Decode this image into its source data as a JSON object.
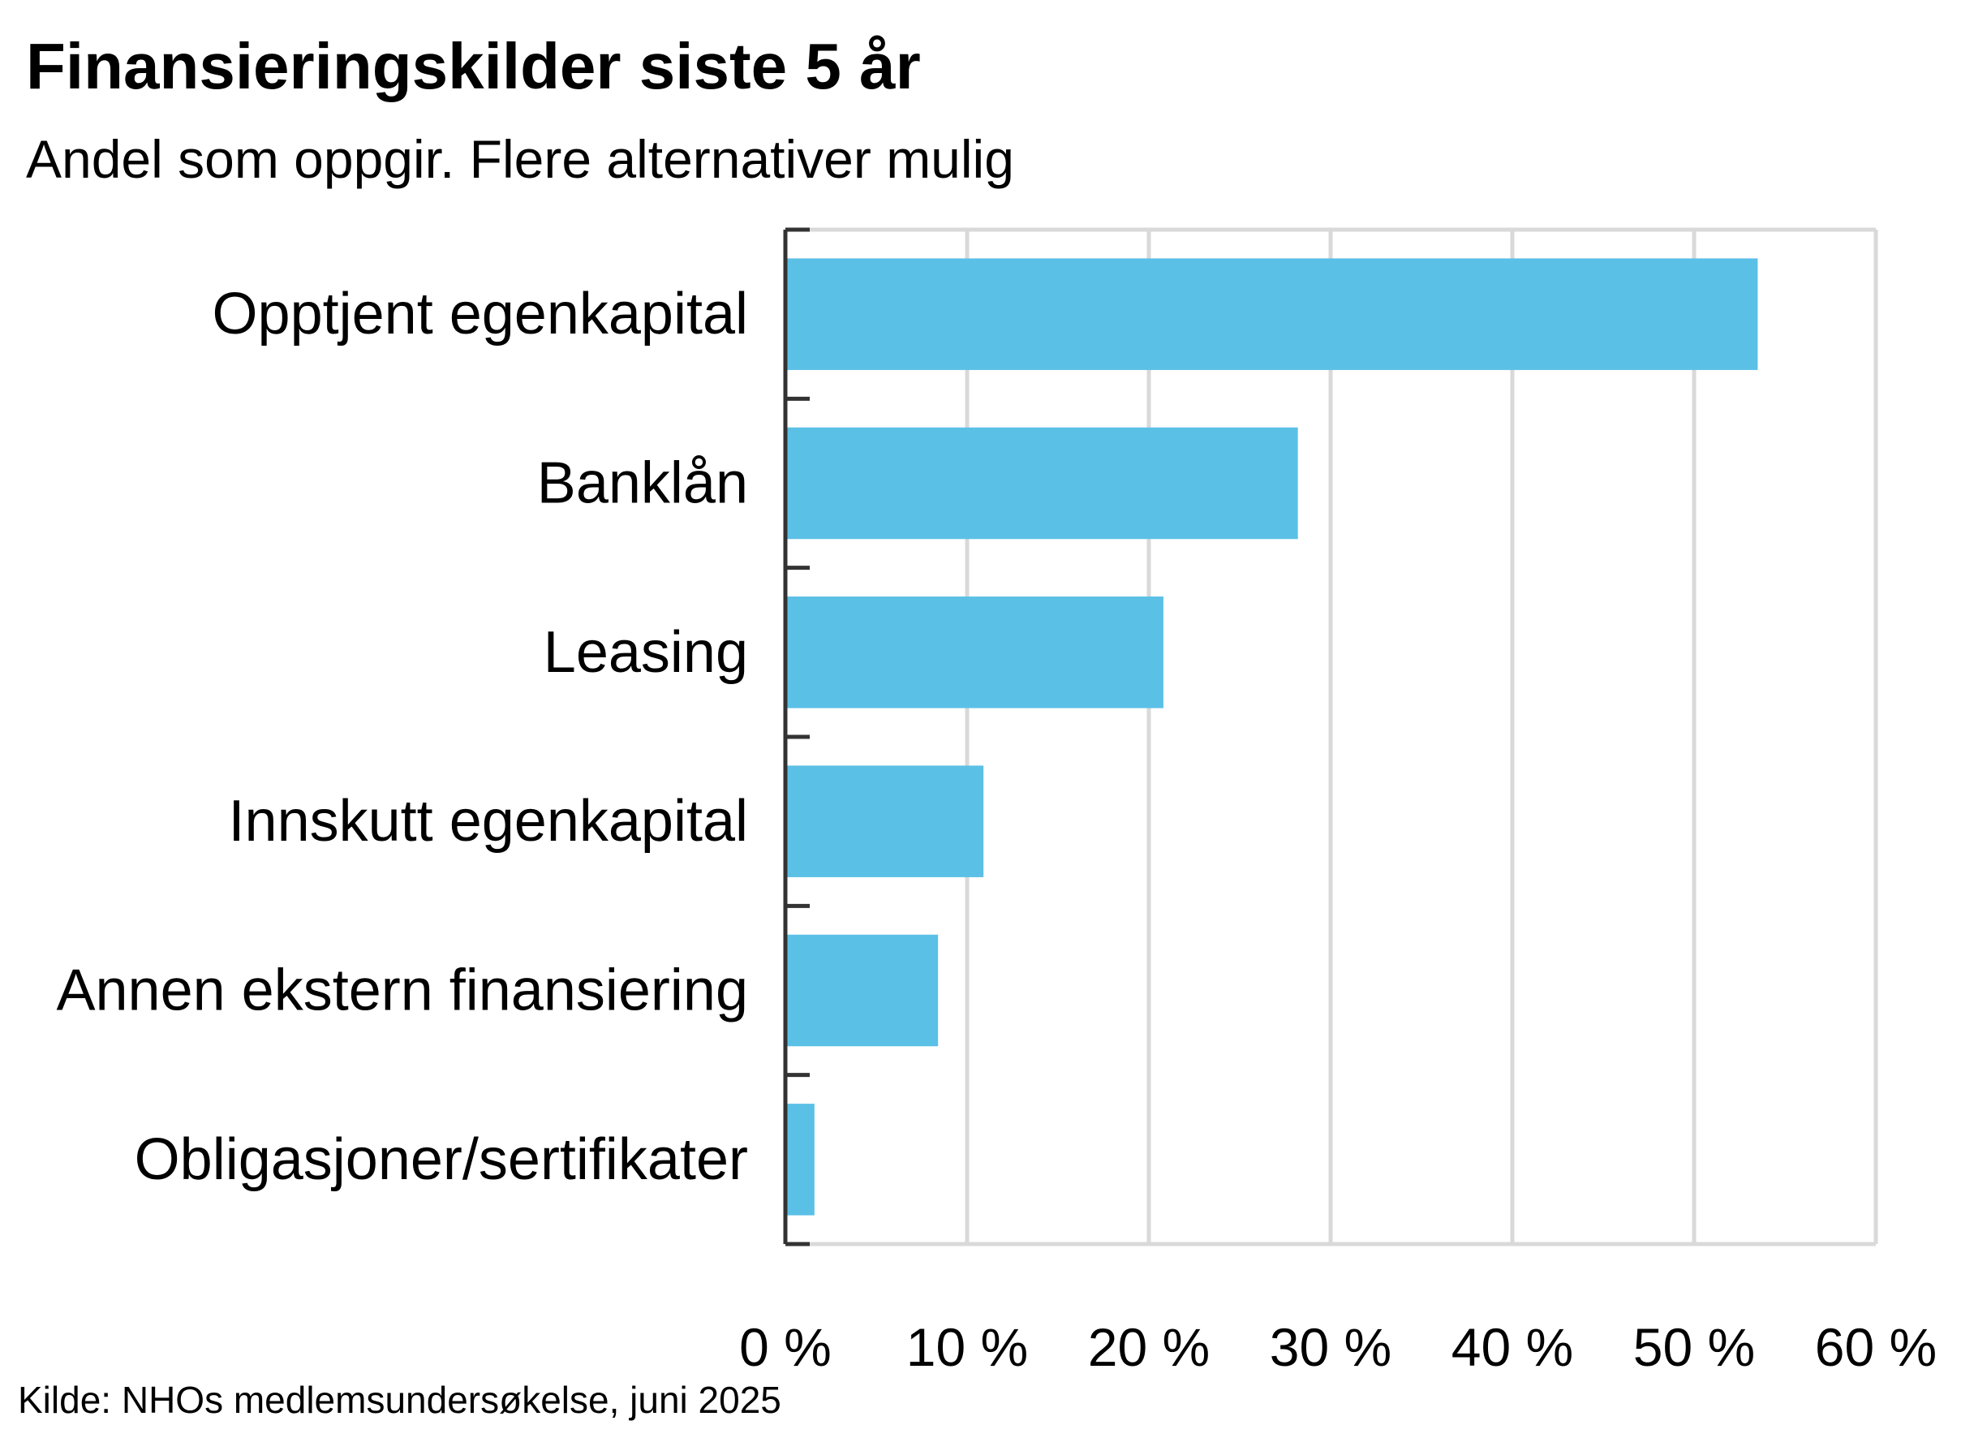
{
  "chart_data": {
    "type": "bar",
    "orientation": "horizontal",
    "title": "Finansieringskilder siste 5 år",
    "subtitle": "Andel som oppgir. Flere alternativer mulig",
    "categories": [
      "Opptjent egenkapital",
      "Banklån",
      "Leasing",
      "Innskutt egenkapital",
      "Annen ekstern finansiering",
      "Obligasjoner/sertifikater"
    ],
    "values": [
      53.5,
      28.2,
      20.8,
      10.9,
      8.4,
      1.6
    ],
    "unit": "%",
    "xlim": [
      0,
      60
    ],
    "ticks": [
      0,
      10,
      20,
      30,
      40,
      50,
      60
    ],
    "tick_labels": [
      "0 %",
      "10 %",
      "20 %",
      "30 %",
      "40 %",
      "50 %",
      "60 %"
    ],
    "grid": "vertical",
    "legend": "none",
    "bar_color": "#5bc0e6",
    "grid_color": "#d9d9d9",
    "axis_color": "#333333",
    "source": "Kilde: NHOs medlemsundersøkelse, juni 2025"
  }
}
